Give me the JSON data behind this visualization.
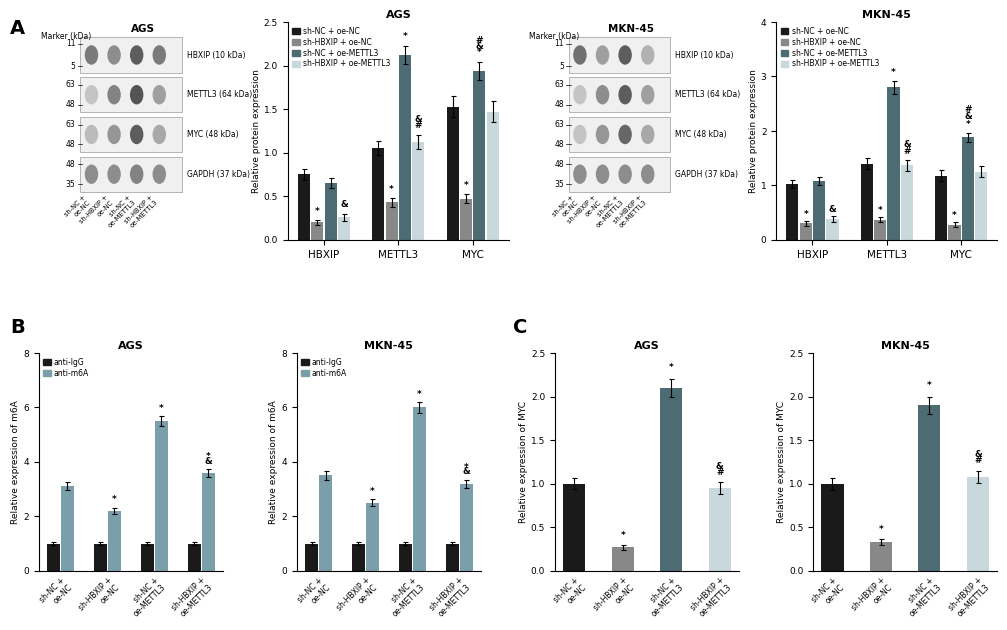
{
  "legend_labels": [
    "sh-NC + oe-NC",
    "sh-HBXIP + oe-NC",
    "sh-NC + oe-METTL3",
    "sh-HBXIP + oe-METTL3"
  ],
  "bar_colors": [
    "#1a1a1a",
    "#888888",
    "#4d6b72",
    "#c8d8dc"
  ],
  "m6A_colors": [
    "#1a1a1a",
    "#7a9faa"
  ],
  "AGS_bar": {
    "title": "AGS",
    "ylabel": "Relative protein expression",
    "groups": [
      "HBXIP",
      "METTL3",
      "MYC"
    ],
    "values": [
      [
        0.75,
        0.2,
        0.65,
        0.26
      ],
      [
        1.05,
        0.43,
        2.12,
        1.12
      ],
      [
        1.53,
        0.47,
        1.94,
        1.47
      ]
    ],
    "errors": [
      [
        0.06,
        0.03,
        0.06,
        0.04
      ],
      [
        0.08,
        0.05,
        0.1,
        0.08
      ],
      [
        0.12,
        0.05,
        0.1,
        0.12
      ]
    ],
    "ylim": [
      0,
      2.5
    ],
    "yticks": [
      0.0,
      0.5,
      1.0,
      1.5,
      2.0,
      2.5
    ]
  },
  "MKN45_bar": {
    "title": "MKN-45",
    "ylabel": "Relative protein expression",
    "groups": [
      "HBXIP",
      "METTL3",
      "MYC"
    ],
    "values": [
      [
        1.02,
        0.3,
        1.08,
        0.38
      ],
      [
        1.4,
        0.37,
        2.8,
        1.37
      ],
      [
        1.18,
        0.28,
        1.88,
        1.25
      ]
    ],
    "errors": [
      [
        0.07,
        0.04,
        0.08,
        0.05
      ],
      [
        0.1,
        0.04,
        0.12,
        0.1
      ],
      [
        0.1,
        0.04,
        0.08,
        0.1
      ]
    ],
    "ylim": [
      0,
      4.0
    ],
    "yticks": [
      0,
      1,
      2,
      3,
      4
    ]
  },
  "AGS_m6A": {
    "title": "AGS",
    "ylabel": "Relative expression of m6A",
    "anti_IgG": [
      1.0,
      1.0,
      1.0,
      1.0
    ],
    "anti_m6A": [
      3.1,
      2.2,
      5.5,
      3.6
    ],
    "anti_IgG_err": [
      0.07,
      0.06,
      0.06,
      0.06
    ],
    "anti_m6A_err": [
      0.15,
      0.12,
      0.18,
      0.15
    ],
    "ylim": [
      0,
      8
    ],
    "yticks": [
      0,
      2,
      4,
      6,
      8
    ]
  },
  "MKN45_m6A": {
    "title": "MKN-45",
    "ylabel": "Relative expression of m6A",
    "anti_IgG": [
      1.0,
      1.0,
      1.0,
      1.0
    ],
    "anti_m6A": [
      3.5,
      2.5,
      6.0,
      3.2
    ],
    "anti_IgG_err": [
      0.07,
      0.06,
      0.07,
      0.06
    ],
    "anti_m6A_err": [
      0.15,
      0.12,
      0.2,
      0.15
    ],
    "ylim": [
      0,
      8
    ],
    "yticks": [
      0,
      2,
      4,
      6,
      8
    ]
  },
  "AGS_MYC": {
    "title": "AGS",
    "ylabel": "Relative expression of MYC",
    "values": [
      1.0,
      0.27,
      2.1,
      0.95
    ],
    "errors": [
      0.06,
      0.03,
      0.1,
      0.07
    ],
    "ylim": [
      0,
      2.5
    ],
    "yticks": [
      0.0,
      0.5,
      1.0,
      1.5,
      2.0,
      2.5
    ]
  },
  "MKN45_MYC": {
    "title": "MKN-45",
    "ylabel": "Relative expression of MYC",
    "values": [
      1.0,
      0.33,
      1.9,
      1.08
    ],
    "errors": [
      0.07,
      0.04,
      0.1,
      0.07
    ],
    "ylim": [
      0,
      2.5
    ],
    "yticks": [
      0.0,
      0.5,
      1.0,
      1.5,
      2.0,
      2.5
    ]
  },
  "xtick_labels": [
    "sh-NC +\noe-NC",
    "sh-HBXIP +\noe-NC",
    "sh-NC +\noe-METTL3",
    "sh-HBXIP +\noe-METTL3"
  ],
  "blot_AGS": {
    "title": "AGS",
    "bands": [
      {
        "label": "HBXIP (10 kDa)",
        "markers": [
          [
            "11",
            0.82
          ],
          [
            "5",
            0.18
          ]
        ],
        "intensities": [
          0.05,
          0.7,
          0.6,
          0.85,
          0.7
        ]
      },
      {
        "label": "METTL3 (64 kDa)",
        "markers": [
          [
            "63",
            0.78
          ],
          [
            "48",
            0.22
          ]
        ],
        "intensities": [
          0.7,
          0.3,
          0.65,
          0.9,
          0.5
        ]
      },
      {
        "label": "MYC (48 kDa)",
        "markers": [
          [
            "63",
            0.78
          ],
          [
            "48",
            0.22
          ]
        ],
        "intensities": [
          0.6,
          0.35,
          0.55,
          0.85,
          0.45
        ]
      },
      {
        "label": "GAPDH (37 kDa)",
        "markers": [
          [
            "48",
            0.78
          ],
          [
            "35",
            0.22
          ]
        ],
        "intensities": [
          0.65,
          0.6,
          0.6,
          0.65,
          0.6
        ]
      }
    ]
  },
  "blot_MKN": {
    "title": "MKN-45",
    "bands": [
      {
        "label": "HBXIP (10 kDa)",
        "markers": [
          [
            "11",
            0.82
          ],
          [
            "5",
            0.18
          ]
        ],
        "intensities": [
          0.05,
          0.75,
          0.5,
          0.85,
          0.4
        ]
      },
      {
        "label": "METTL3 (64 kDa)",
        "markers": [
          [
            "63",
            0.78
          ],
          [
            "48",
            0.22
          ]
        ],
        "intensities": [
          0.7,
          0.3,
          0.6,
          0.85,
          0.5
        ]
      },
      {
        "label": "MYC (48 kDa)",
        "markers": [
          [
            "63",
            0.78
          ],
          [
            "48",
            0.22
          ]
        ],
        "intensities": [
          0.6,
          0.3,
          0.55,
          0.8,
          0.45
        ]
      },
      {
        "label": "GAPDH (37 kDa)",
        "markers": [
          [
            "48",
            0.78
          ],
          [
            "35",
            0.22
          ]
        ],
        "intensities": [
          0.6,
          0.6,
          0.6,
          0.6,
          0.6
        ]
      }
    ]
  }
}
